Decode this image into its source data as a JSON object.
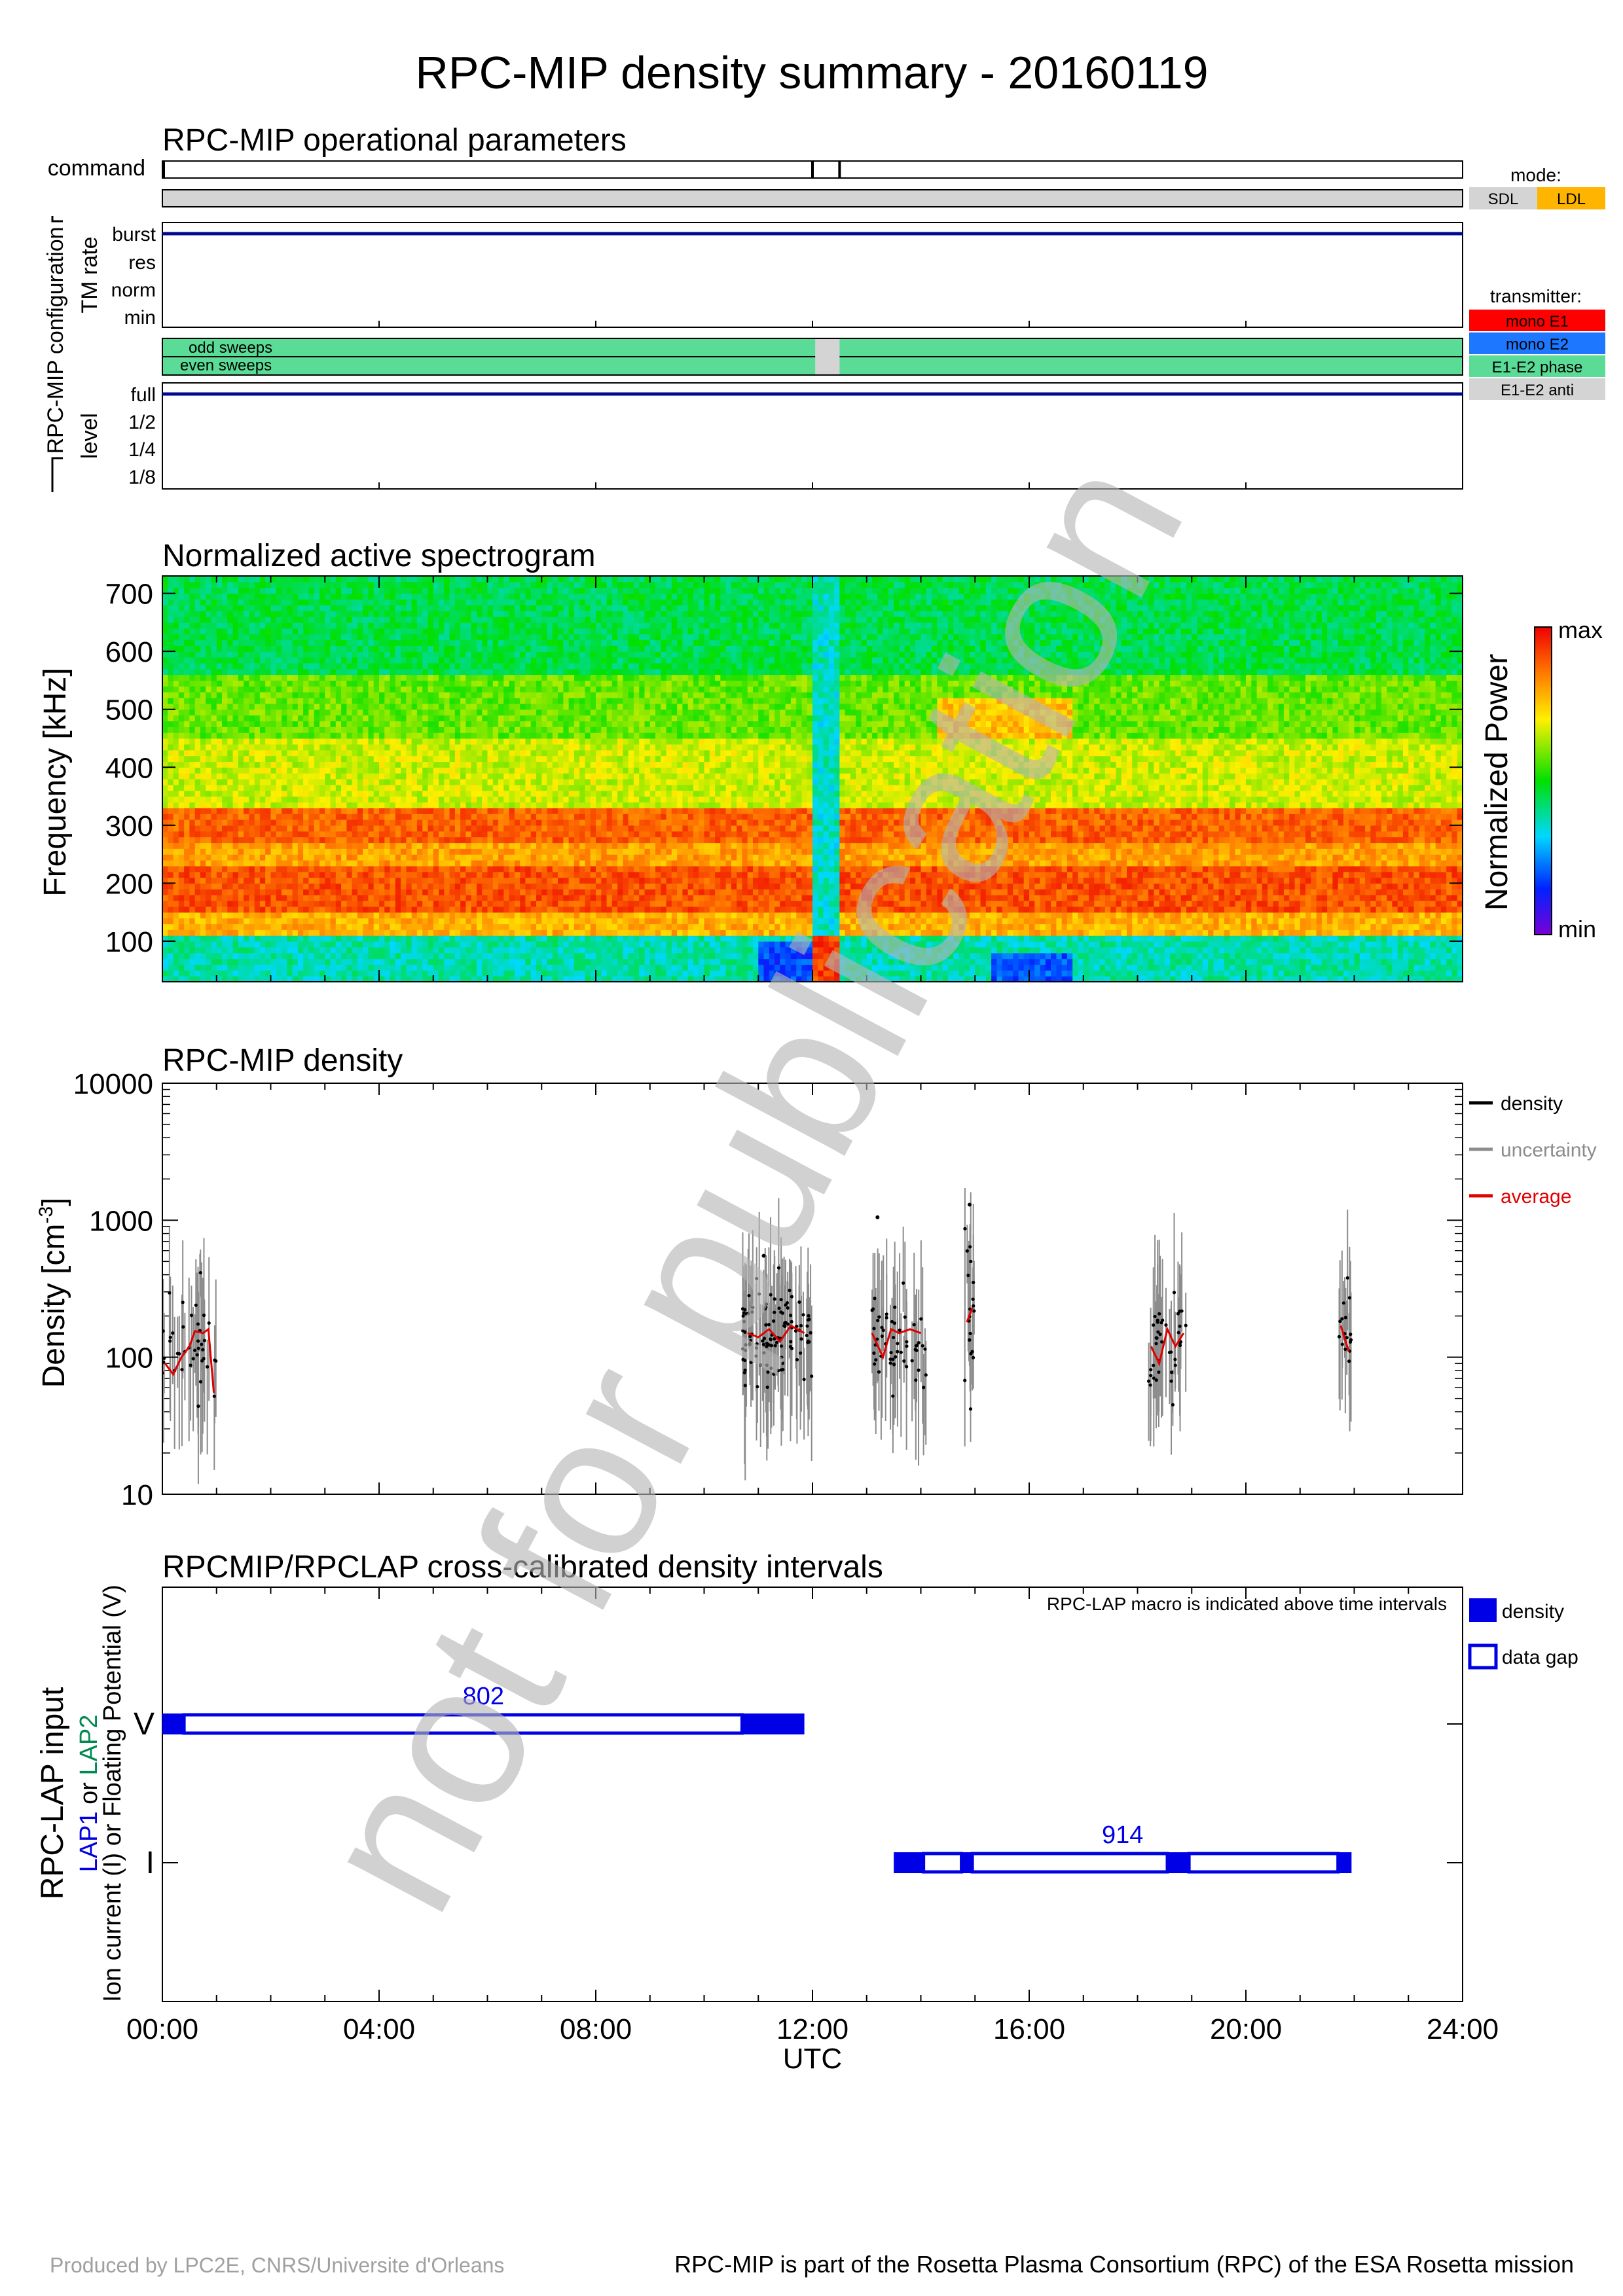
{
  "title": "RPC-MIP density summary - 20160119",
  "ops": {
    "title": "RPC-MIP operational parameters",
    "command_label": "command",
    "config_label": "RPC-MIP configuration",
    "tm_label": "TM rate",
    "tm_levels": [
      "burst",
      "res",
      "norm",
      "min"
    ],
    "sweeps": [
      "odd sweeps",
      "even sweeps"
    ],
    "level_label": "level",
    "levels": [
      "full",
      "1/2",
      "1/4",
      "1/8"
    ],
    "command_hours": [
      0.0,
      12.0,
      12.5
    ],
    "sweep_gap_hours": [
      12.05,
      12.5
    ],
    "tm_rate_value": "burst",
    "level_value": "full",
    "mode_title": "mode:",
    "modes": [
      {
        "label": "SDL",
        "color": "#d4d4d4"
      },
      {
        "label": "LDL",
        "color": "#ffb400"
      }
    ],
    "transmitter_title": "transmitter:",
    "transmitters": [
      {
        "label": "mono E1",
        "color": "#ff0000"
      },
      {
        "label": "mono E2",
        "color": "#1e78ff"
      },
      {
        "label": "E1-E2 phase",
        "color": "#5adc96"
      },
      {
        "label": "E1-E2 anti",
        "color": "#d4d4d4"
      }
    ]
  },
  "time_axis": {
    "ticks": [
      "00:00",
      "04:00",
      "08:00",
      "12:00",
      "16:00",
      "20:00",
      "24:00"
    ],
    "xlabel": "UTC",
    "range_hours": [
      0,
      24
    ]
  },
  "chart_data": [
    {
      "type": "heatmap",
      "title": "Normalized active spectrogram",
      "ylabel": "Frequency [kHz]",
      "yticks": [
        100,
        200,
        300,
        400,
        500,
        600,
        700
      ],
      "ylim": [
        30,
        730
      ],
      "xlim": [
        0,
        24
      ],
      "colorbar_label": "Normalized Power",
      "colorbar_max": "max",
      "colorbar_min": "min",
      "bands": [
        {
          "fmin": 30,
          "fmax": 110,
          "level": 0.38
        },
        {
          "fmin": 110,
          "fmax": 150,
          "level": 0.78
        },
        {
          "fmin": 150,
          "fmax": 230,
          "level": 0.9
        },
        {
          "fmin": 230,
          "fmax": 270,
          "level": 0.8
        },
        {
          "fmin": 270,
          "fmax": 330,
          "level": 0.88
        },
        {
          "fmin": 330,
          "fmax": 450,
          "level": 0.66
        },
        {
          "fmin": 450,
          "fmax": 560,
          "level": 0.58
        },
        {
          "fmin": 560,
          "fmax": 730,
          "level": 0.45
        }
      ],
      "features": [
        {
          "t0": 12.05,
          "t1": 12.5,
          "fmin": 30,
          "fmax": 730,
          "level": 0.36
        },
        {
          "t0": 11.0,
          "t1": 12.0,
          "fmin": 30,
          "fmax": 105,
          "level": 0.18
        },
        {
          "t0": 15.3,
          "t1": 16.8,
          "fmin": 30,
          "fmax": 80,
          "level": 0.2
        },
        {
          "t0": 14.3,
          "t1": 16.8,
          "fmin": 450,
          "fmax": 520,
          "level": 0.76
        },
        {
          "t0": 12.05,
          "t1": 12.5,
          "fmin": 30,
          "fmax": 110,
          "level": 0.92
        }
      ]
    },
    {
      "type": "scatter",
      "title": "RPC-MIP density",
      "ylabel": "Density [cm-3]",
      "yscale": "log",
      "ylim": [
        10,
        10000
      ],
      "yticks": [
        10,
        100,
        1000,
        10000
      ],
      "xlim": [
        0,
        24
      ],
      "legend": [
        {
          "name": "density",
          "color": "#000000"
        },
        {
          "name": "uncertainty",
          "color": "#8c8c8c"
        },
        {
          "name": "average",
          "color": "#e00000"
        }
      ],
      "clusters": [
        {
          "t0": 0.0,
          "t1": 1.0,
          "median": 110,
          "spread": 0.45,
          "n": 40
        },
        {
          "t0": 10.7,
          "t1": 12.0,
          "median": 150,
          "spread": 0.4,
          "n": 110
        },
        {
          "t0": 13.1,
          "t1": 14.1,
          "median": 140,
          "spread": 0.35,
          "n": 55
        },
        {
          "t0": 14.8,
          "t1": 15.0,
          "median": 210,
          "spread": 0.5,
          "n": 20
        },
        {
          "t0": 18.2,
          "t1": 18.9,
          "median": 120,
          "spread": 0.35,
          "n": 40
        },
        {
          "t0": 21.7,
          "t1": 21.95,
          "median": 150,
          "spread": 0.3,
          "n": 16
        }
      ],
      "average": [
        {
          "t": 0.05,
          "y": 90
        },
        {
          "t": 0.2,
          "y": 75
        },
        {
          "t": 0.35,
          "y": 100
        },
        {
          "t": 0.5,
          "y": 120
        },
        {
          "t": 0.6,
          "y": 155
        },
        {
          "t": 0.75,
          "y": 150
        },
        {
          "t": 0.85,
          "y": 160
        },
        {
          "t": 0.95,
          "y": 55
        },
        {
          "t": 10.8,
          "y": 150
        },
        {
          "t": 11.0,
          "y": 140
        },
        {
          "t": 11.2,
          "y": 160
        },
        {
          "t": 11.4,
          "y": 130
        },
        {
          "t": 11.6,
          "y": 170
        },
        {
          "t": 11.85,
          "y": 150
        },
        {
          "t": 13.1,
          "y": 150
        },
        {
          "t": 13.3,
          "y": 100
        },
        {
          "t": 13.45,
          "y": 160
        },
        {
          "t": 13.6,
          "y": 150
        },
        {
          "t": 13.8,
          "y": 160
        },
        {
          "t": 14.0,
          "y": 150
        },
        {
          "t": 14.85,
          "y": 180
        },
        {
          "t": 14.95,
          "y": 230
        },
        {
          "t": 18.25,
          "y": 120
        },
        {
          "t": 18.4,
          "y": 90
        },
        {
          "t": 18.55,
          "y": 160
        },
        {
          "t": 18.7,
          "y": 120
        },
        {
          "t": 18.85,
          "y": 150
        },
        {
          "t": 21.75,
          "y": 170
        },
        {
          "t": 21.9,
          "y": 110
        }
      ],
      "outliers": [
        {
          "t": 13.2,
          "y": 1050
        },
        {
          "t": 14.9,
          "y": 1300
        },
        {
          "t": 11.1,
          "y": 550
        }
      ]
    },
    {
      "type": "bar",
      "title": "RPCMIP/RPCLAP cross-calibrated density intervals",
      "ylabel_main": "RPC-LAP input",
      "ylabel_sub2_prefix": "LAP1",
      "ylabel_sub2_mid": " or ",
      "ylabel_sub2_suffix": "LAP2",
      "ylabel_sub1": "Ion current (I) or Floating Potential (V)",
      "categories": [
        "V",
        "I"
      ],
      "note": "RPC-LAP macro is indicated above time intervals",
      "legend": [
        {
          "name": "density",
          "filled": true
        },
        {
          "name": "data gap",
          "filled": false
        }
      ],
      "xlim": [
        0,
        24
      ],
      "intervals": [
        {
          "row": "V",
          "t0": 0.0,
          "t1": 11.85,
          "macro": "802",
          "density": [
            [
              0.0,
              0.4
            ],
            [
              10.7,
              11.85
            ]
          ],
          "gaps": [
            [
              0.4,
              10.7
            ]
          ]
        },
        {
          "row": "I",
          "t0": 13.5,
          "t1": 21.95,
          "macro": "914",
          "density": [
            [
              13.5,
              14.05
            ],
            [
              14.75,
              14.95
            ],
            [
              18.55,
              18.95
            ],
            [
              21.7,
              21.95
            ]
          ],
          "gaps": [
            [
              14.05,
              14.75
            ],
            [
              14.95,
              18.55
            ],
            [
              18.95,
              21.7
            ]
          ]
        }
      ]
    }
  ],
  "watermark": "not for publication",
  "footer_left": "Produced by LPC2E, CNRS/Universite d'Orleans",
  "footer_right": "RPC-MIP is part of the Rosetta Plasma Consortium (RPC) of the ESA Rosetta mission"
}
